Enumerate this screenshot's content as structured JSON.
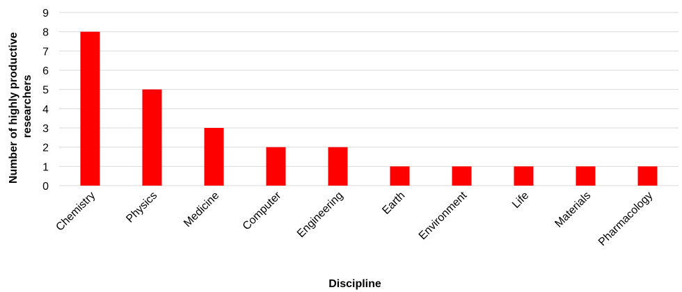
{
  "chart_data": {
    "type": "bar",
    "categories": [
      "Chemistry",
      "Physics",
      "Medicine",
      "Computer",
      "Engineering",
      "Earth",
      "Environment",
      "Life",
      "Materials",
      "Pharmacology"
    ],
    "values": [
      8,
      5,
      3,
      2,
      2,
      1,
      1,
      1,
      1,
      1
    ],
    "xlabel": "Discipline",
    "ylabel_lines": [
      "Number of highly productive",
      "researchers"
    ],
    "ylim": [
      0,
      9
    ],
    "yticks": [
      0,
      1,
      2,
      3,
      4,
      5,
      6,
      7,
      8,
      9
    ],
    "grid": true,
    "legend": "none",
    "bar_color": "#ff0000",
    "grid_color": "#d9d9d9"
  }
}
